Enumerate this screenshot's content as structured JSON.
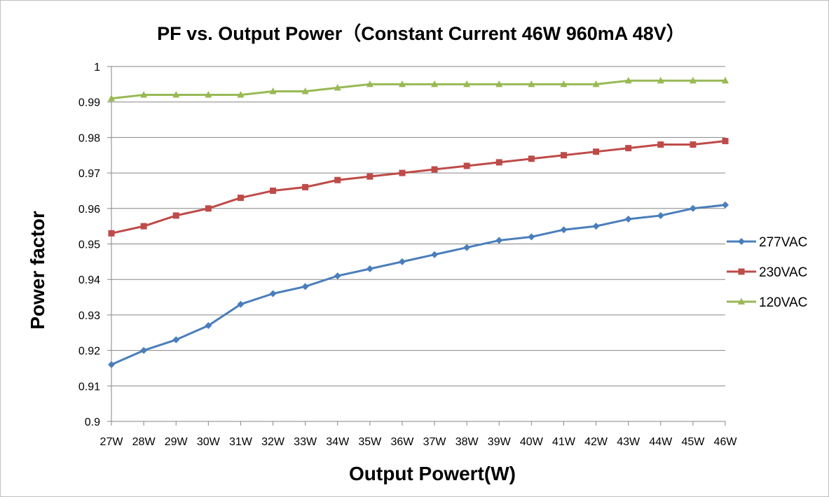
{
  "chart_data": {
    "type": "line",
    "title": "PF vs. Output Power（Constant Current 46W 960mA 48V）",
    "xlabel": "Output Powert(W)",
    "ylabel": "Power factor",
    "categories": [
      "27W",
      "28W",
      "29W",
      "30W",
      "31W",
      "32W",
      "33W",
      "34W",
      "35W",
      "36W",
      "37W",
      "38W",
      "39W",
      "40W",
      "41W",
      "42W",
      "43W",
      "44W",
      "45W",
      "46W"
    ],
    "ylim": [
      0.9,
      1
    ],
    "ystep": 0.01,
    "yticks": [
      "0.9",
      "0.91",
      "0.92",
      "0.93",
      "0.94",
      "0.95",
      "0.96",
      "0.97",
      "0.98",
      "0.99",
      "1"
    ],
    "grid": true,
    "legend_position": "right",
    "series": [
      {
        "name": "277VAC",
        "color": "#4a7ebb",
        "marker": "diamond",
        "values": [
          0.916,
          0.92,
          0.923,
          0.927,
          0.933,
          0.936,
          0.938,
          0.941,
          0.943,
          0.945,
          0.947,
          0.949,
          0.951,
          0.952,
          0.954,
          0.955,
          0.957,
          0.958,
          0.96,
          0.961
        ]
      },
      {
        "name": "230VAC",
        "color": "#be4b48",
        "marker": "square",
        "values": [
          0.953,
          0.955,
          0.958,
          0.96,
          0.963,
          0.965,
          0.966,
          0.968,
          0.969,
          0.97,
          0.971,
          0.972,
          0.973,
          0.974,
          0.975,
          0.976,
          0.977,
          0.978,
          0.978,
          0.979
        ]
      },
      {
        "name": "120VAC",
        "color": "#98b954",
        "marker": "triangle",
        "values": [
          0.991,
          0.992,
          0.992,
          0.992,
          0.992,
          0.993,
          0.993,
          0.994,
          0.995,
          0.995,
          0.995,
          0.995,
          0.995,
          0.995,
          0.995,
          0.995,
          0.996,
          0.996,
          0.996,
          0.996
        ]
      }
    ]
  }
}
